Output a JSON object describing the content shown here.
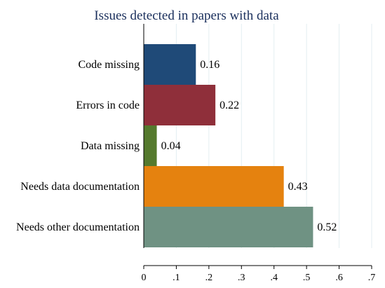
{
  "chart_data": {
    "type": "bar",
    "orientation": "horizontal",
    "title": "Issues detected in papers with data",
    "xlabel": "",
    "ylabel": "",
    "categories": [
      "Code missing",
      "Errors in code",
      "Data missing",
      "Needs data documentation",
      "Needs other documentation"
    ],
    "values": [
      0.16,
      0.22,
      0.04,
      0.43,
      0.52
    ],
    "value_labels": [
      "0.16",
      "0.22",
      "0.04",
      "0.43",
      "0.52"
    ],
    "colors": [
      "#1f4a78",
      "#8f2f3a",
      "#557a2e",
      "#e5820f",
      "#6f9283"
    ],
    "xlim": [
      0,
      0.7
    ],
    "xticks": [
      0,
      0.1,
      0.2,
      0.3,
      0.4,
      0.5,
      0.6,
      0.7
    ],
    "xtick_labels": [
      "0",
      ".1",
      ".2",
      ".3",
      ".4",
      ".5",
      ".6",
      ".7"
    ],
    "grid": true,
    "legend": "none"
  }
}
